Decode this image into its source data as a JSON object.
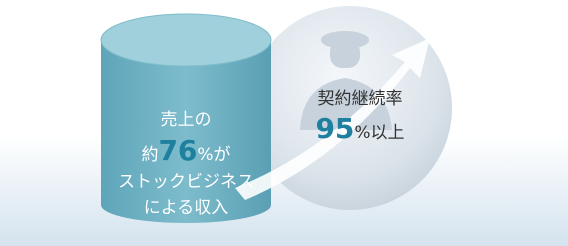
{
  "cylinder": {
    "line1": "売上の",
    "prefix": "約",
    "number": "76",
    "suffix": "%が",
    "line3": "ストックビジネス",
    "line4": "による収入"
  },
  "circle": {
    "label": "契約継続率",
    "number": "95",
    "suffix": "%以上"
  }
}
